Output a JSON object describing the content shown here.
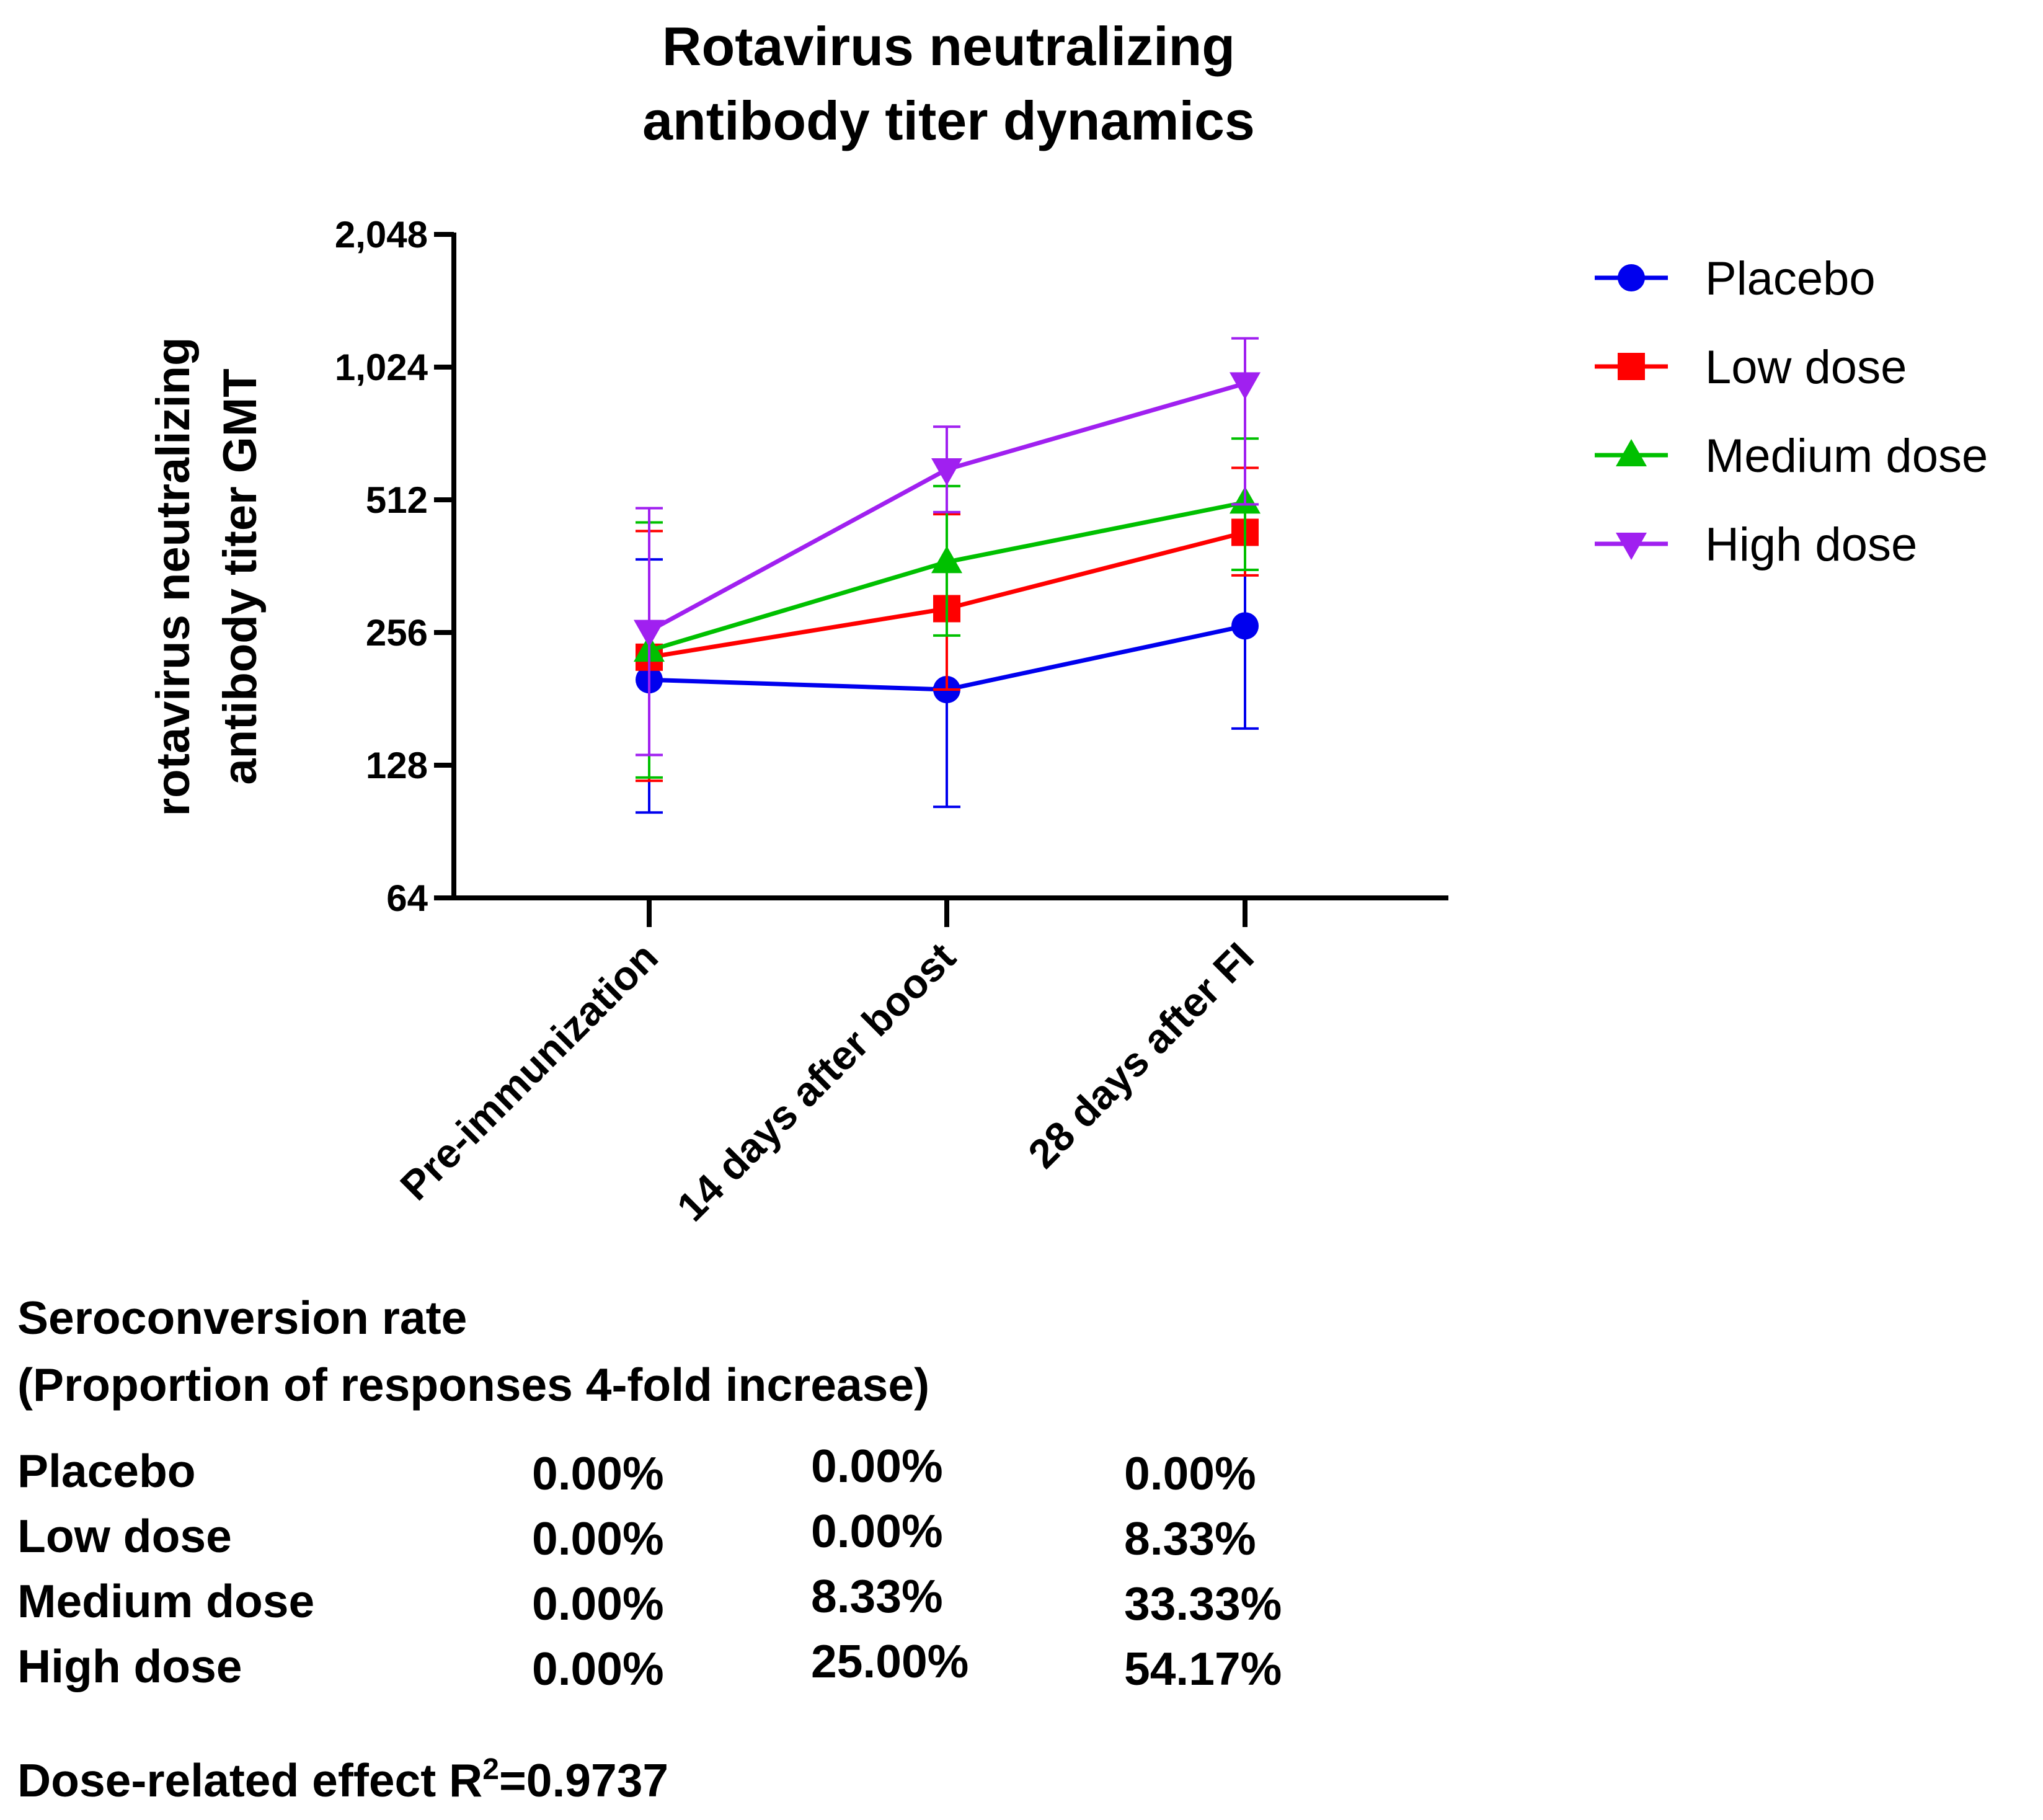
{
  "chart_data": {
    "type": "line",
    "title": [
      "Rotavirus neutralizing",
      "antibody titer dynamics"
    ],
    "ylabel": [
      "rotavirus neutralizing",
      "antibody titer GMT"
    ],
    "xlabel": "",
    "yscale": "log2",
    "ylim": [
      64,
      2048
    ],
    "yticks": [
      64,
      128,
      256,
      512,
      1024,
      2048
    ],
    "ytick_labels": [
      "64",
      "128",
      "256",
      "512",
      "1,024",
      "2,048"
    ],
    "categories": [
      "Pre-immunization",
      "14 days after boost",
      "28 days after FI"
    ],
    "legend_position": "right",
    "series": [
      {
        "name": "Placebo",
        "color": "#0000ee",
        "marker": "circle",
        "values": [
          200,
          190,
          265
        ],
        "err_low": [
          100,
          103,
          155
        ],
        "err_high": [
          375,
          192,
          460
        ]
      },
      {
        "name": "Low dose",
        "color": "#ff0000",
        "marker": "square",
        "values": [
          225,
          290,
          432
        ],
        "err_low": [
          118,
          190,
          345
        ],
        "err_high": [
          435,
          475,
          605
        ]
      },
      {
        "name": "Medium dose",
        "color": "#00c000",
        "marker": "triangle-up",
        "values": [
          233,
          370,
          505
        ],
        "err_low": [
          120,
          252,
          355
        ],
        "err_high": [
          455,
          550,
          705
        ]
      },
      {
        "name": "High dose",
        "color": "#a020f0",
        "marker": "triangle-down",
        "values": [
          258,
          600,
          940
        ],
        "err_low": [
          135,
          480,
          500
        ],
        "err_high": [
          490,
          750,
          1190
        ]
      }
    ]
  },
  "table": {
    "heading": [
      "Seroconversion rate",
      "(Proportion of responses 4-fold increase)"
    ],
    "rows": [
      {
        "group": "Placebo",
        "values": [
          "0.00%",
          "0.00%",
          "0.00%"
        ]
      },
      {
        "group": "Low dose",
        "values": [
          "0.00%",
          "0.00%",
          "8.33%"
        ]
      },
      {
        "group": "Medium dose",
        "values": [
          "0.00%",
          "8.33%",
          "33.33%"
        ]
      },
      {
        "group": "High dose",
        "values": [
          "0.00%",
          "25.00%",
          "54.17%"
        ]
      }
    ],
    "footer_prefix": "Dose-related effect R",
    "footer_sup": "2",
    "footer_suffix": "=0.9737"
  }
}
